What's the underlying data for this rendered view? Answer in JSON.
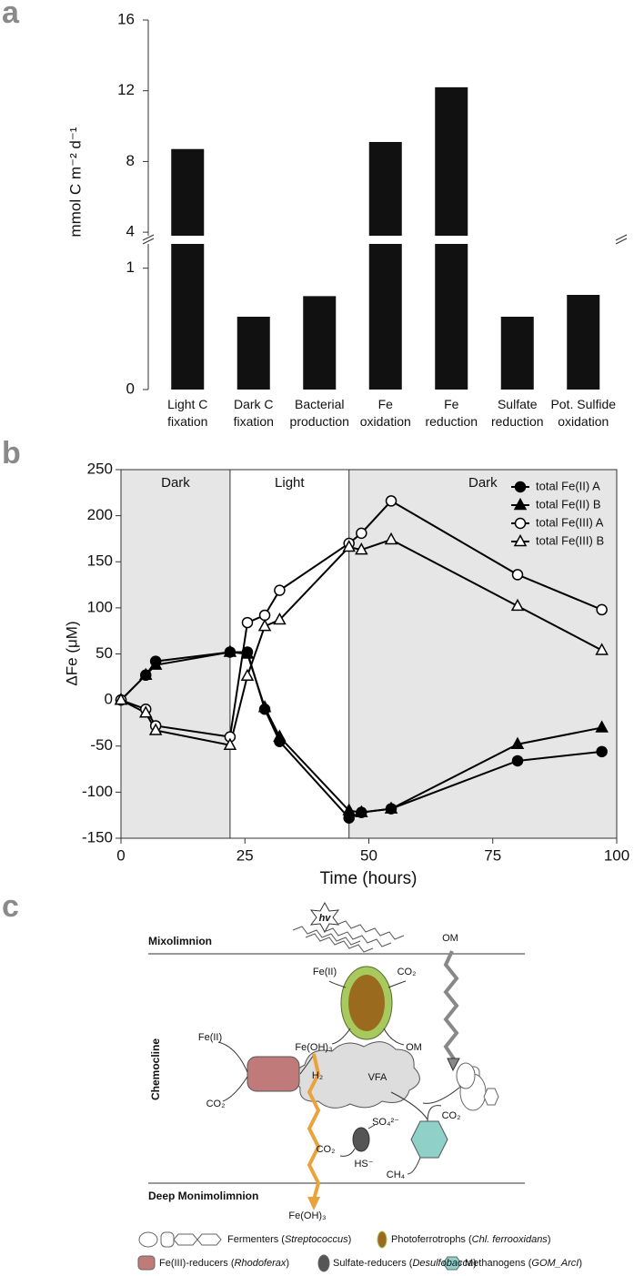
{
  "chart_data": [
    {
      "type": "bar",
      "panel_label": "a",
      "y_label": "mmol C m⁻² d⁻¹",
      "categories": [
        "Light C\nfixation",
        "Dark C\nfixation",
        "Bacterial\nproduction",
        "Fe\noxidation",
        "Fe\nreduction",
        "Sulfate\nreduction",
        "Pot. Sulfide\noxidation"
      ],
      "values": [
        8.7,
        0.6,
        0.77,
        9.1,
        12.2,
        0.6,
        0.78
      ],
      "color": "#111111",
      "ylim": [
        0,
        16
      ],
      "ylim_segments": [
        [
          0,
          1.2
        ],
        [
          3.8,
          16
        ]
      ],
      "yticks": [
        0,
        1,
        4,
        8,
        12,
        16
      ]
    },
    {
      "type": "line",
      "panel_label": "b",
      "x_label": "Time (hours)",
      "y_label": "ΔFe (μM)",
      "x": [
        0,
        5,
        7,
        22,
        25.5,
        29,
        32,
        46,
        48.5,
        54.5,
        80,
        97
      ],
      "series": [
        {
          "name": "total Fe(II) A",
          "marker": "circle",
          "color": "#000000",
          "fill": "#000000",
          "values": [
            0,
            27,
            42,
            52,
            52,
            -10,
            -45,
            -128,
            -122,
            -118,
            -66,
            -56
          ]
        },
        {
          "name": "total Fe(II) B",
          "marker": "triangle",
          "color": "#000000",
          "fill": "#000000",
          "values": [
            0,
            27,
            38,
            52,
            50,
            -8,
            -40,
            -120,
            -122,
            -118,
            -48,
            -30
          ]
        },
        {
          "name": "total Fe(III) A",
          "marker": "circle",
          "color": "#000000",
          "fill": "#ffffff",
          "values": [
            0,
            -10,
            -28,
            -40,
            84,
            92,
            119,
            170,
            181,
            216,
            136,
            98
          ]
        },
        {
          "name": "total Fe(III) B",
          "marker": "triangle",
          "color": "#000000",
          "fill": "#ffffff",
          "values": [
            0,
            -14,
            -33,
            -49,
            26,
            80,
            87,
            166,
            163,
            174,
            102,
            54
          ]
        }
      ],
      "periods": [
        {
          "label": "Dark",
          "start": 0,
          "end": 22,
          "color": "#e6e6e6"
        },
        {
          "label": "Light",
          "start": 22,
          "end": 46,
          "color": "#ffffff"
        },
        {
          "label": "Dark",
          "start": 46,
          "end": 100,
          "color": "#e6e6e6"
        }
      ],
      "xlim": [
        0,
        100
      ],
      "ylim": [
        -150,
        250
      ],
      "xticks": [
        0,
        25,
        50,
        75,
        100
      ],
      "yticks": [
        -150,
        -100,
        -50,
        0,
        50,
        100,
        150,
        200,
        250
      ],
      "legend": "upper right"
    }
  ],
  "diagram": {
    "panel_label": "c",
    "zones": [
      "Mixolimnion",
      "Chemocline",
      "Deep Monimolimnion"
    ],
    "labels": {
      "light": "hv",
      "om_top": "OM",
      "feii_top": "Fe(II)",
      "co2_top": "CO₂",
      "feoh3_mid": "Fe(OH)₃",
      "om_mid": "OM",
      "feii_left": "Fe(II)",
      "co2_left": "CO₂",
      "h2": "H₂",
      "vfa": "VFA",
      "so4": "SO₄²⁻",
      "co2_sulf": "CO₂",
      "hs": "HS⁻",
      "co2_meth": "CO₂",
      "ch4": "CH₄",
      "feoh3_bottom": "Fe(OH)₃"
    },
    "legend": [
      [
        "Fermenters (",
        "Streptococcus",
        ")"
      ],
      [
        "Photoferrotrophs (",
        "Chl. ferrooxidans",
        ")"
      ],
      [
        "Fe(III)-reducers (",
        "Rhodoferax",
        ")"
      ],
      [
        "Sulfate-reducers (",
        "Desulfobacca",
        ")"
      ],
      [
        "Methanogens (",
        "GOM_ArcI",
        ")"
      ]
    ]
  }
}
